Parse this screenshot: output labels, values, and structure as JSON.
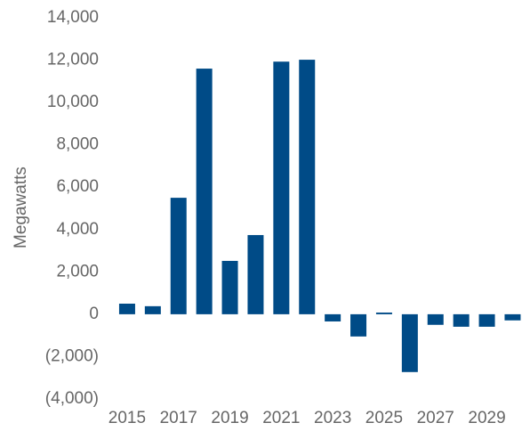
{
  "chart_data": {
    "type": "bar",
    "y_label": "Megawatts",
    "categories": [
      "2015",
      null,
      "2017",
      null,
      "2019",
      null,
      "2021",
      null,
      "2023",
      null,
      "2025",
      null,
      "2027",
      null,
      "2029",
      null
    ],
    "values": [
      500,
      380,
      5500,
      11600,
      2520,
      3740,
      11930,
      12020,
      -340,
      -1050,
      80,
      -2730,
      -500,
      -590,
      -590,
      -290
    ],
    "color": "#004b87",
    "ylim": [
      -4000,
      14000
    ],
    "yticks": [
      {
        "value": -4000,
        "label": "(4,000)"
      },
      {
        "value": -2000,
        "label": "(2,000)"
      },
      0,
      {
        "value": 2000,
        "label": "2,000"
      },
      {
        "value": 4000,
        "label": "4,000"
      },
      {
        "value": 6000,
        "label": "6,000"
      },
      {
        "value": 8000,
        "label": "8,000"
      },
      {
        "value": 10000,
        "label": "10,000"
      },
      {
        "value": 12000,
        "label": "12,000"
      },
      {
        "value": 14000,
        "label": "14,000"
      }
    ],
    "grid": false
  }
}
